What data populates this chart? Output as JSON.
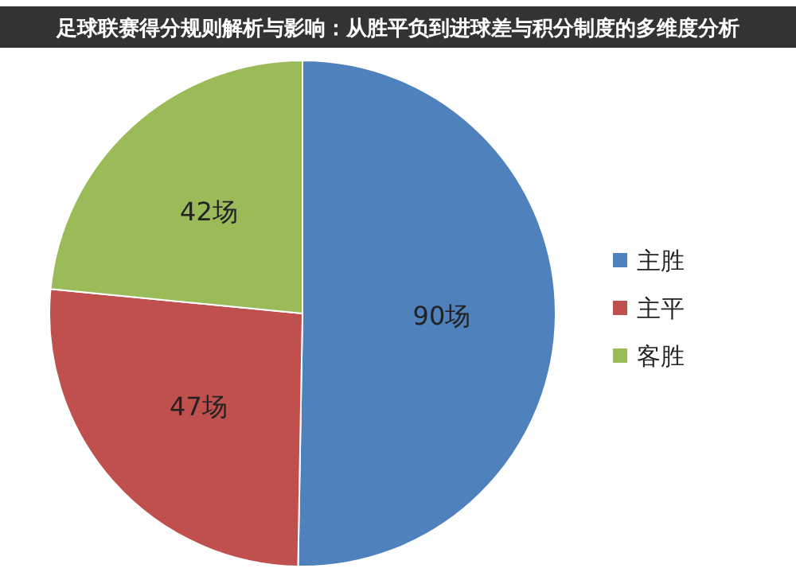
{
  "chart_data": {
    "type": "pie",
    "title": "足球联赛得分规则解析与影响：从胜平负到进球差与积分制度的多维度分析",
    "categories": [
      "主胜",
      "主平",
      "客胜"
    ],
    "values": [
      90,
      47,
      42
    ],
    "value_labels": [
      "90场",
      "47场",
      "42场"
    ],
    "colors": [
      "#4f81bd",
      "#c0504d",
      "#9bbb59"
    ],
    "legend": "right"
  }
}
